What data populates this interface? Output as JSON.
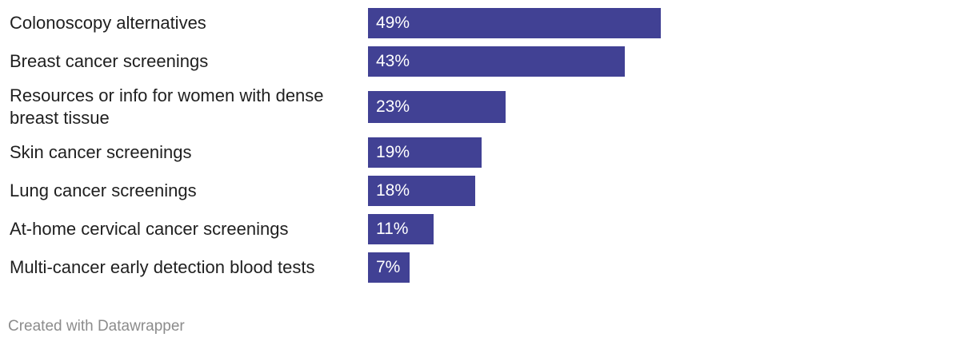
{
  "chart_data": {
    "type": "bar",
    "orientation": "horizontal",
    "title": "",
    "xlabel": "",
    "ylabel": "",
    "xlim": [
      0,
      100
    ],
    "grid": false,
    "categories": [
      "Colonoscopy alternatives",
      "Breast cancer screenings",
      "Resources or info for women with dense breast tissue",
      "Skin cancer screenings",
      "Lung cancer screenings",
      "At-home cervical cancer screenings",
      "Multi-cancer early detection blood tests"
    ],
    "values": [
      49,
      43,
      23,
      19,
      18,
      11,
      7
    ],
    "value_labels": [
      "49%",
      "43%",
      "23%",
      "19%",
      "18%",
      "11%",
      "7%"
    ],
    "bar_color": "#414194",
    "value_label_color": "#ffffff"
  },
  "footer": {
    "credit": "Created with Datawrapper"
  }
}
